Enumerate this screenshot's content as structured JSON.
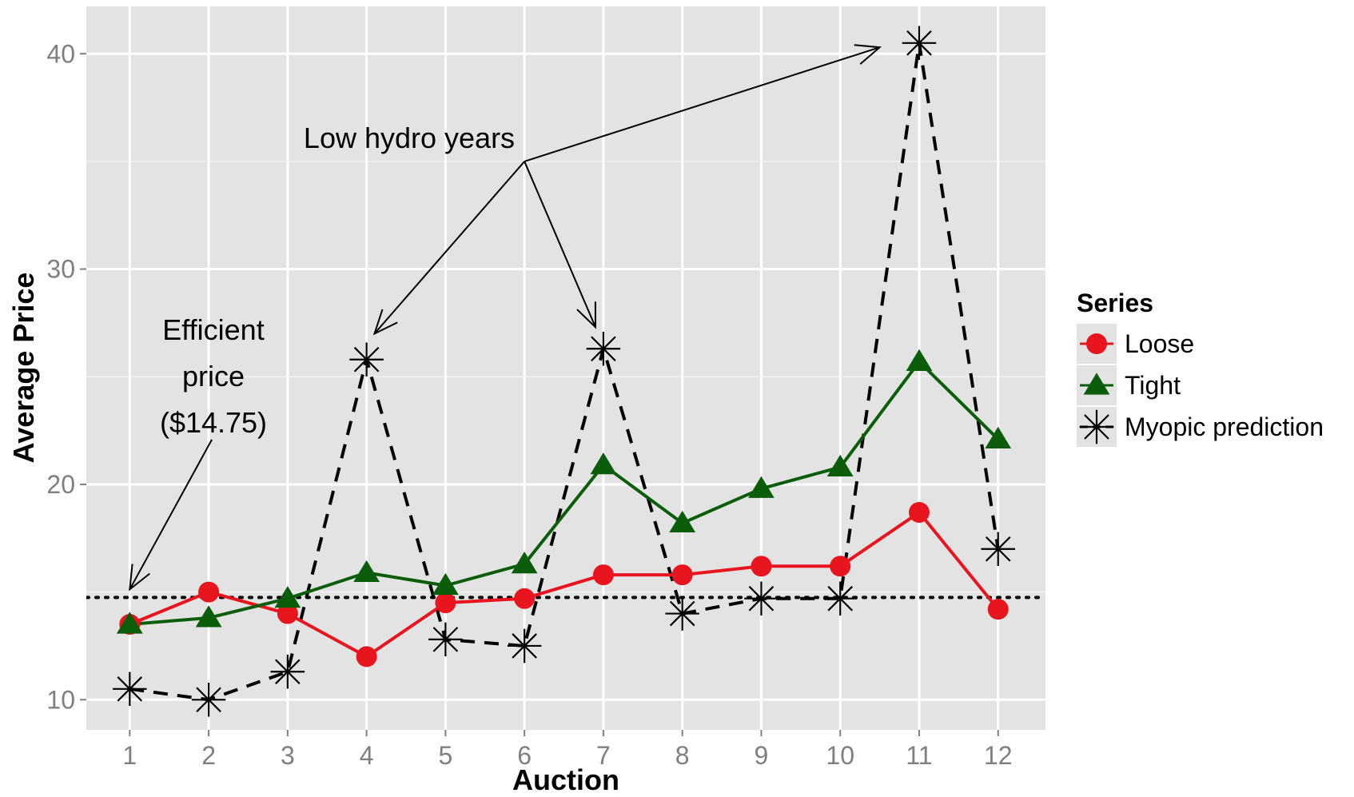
{
  "chart_data": {
    "type": "line",
    "title": "",
    "xlabel": "Auction",
    "ylabel": "Average Price",
    "x": [
      1,
      2,
      3,
      4,
      5,
      6,
      7,
      8,
      9,
      10,
      11,
      12
    ],
    "xticks": [
      "1",
      "2",
      "3",
      "4",
      "5",
      "6",
      "7",
      "8",
      "9",
      "10",
      "11",
      "12"
    ],
    "xlim": [
      0.45,
      12.6
    ],
    "ylim": [
      8.6,
      42.2
    ],
    "yticks": [
      10,
      20,
      30,
      40
    ],
    "ytick_labels": [
      "10",
      "20",
      "30",
      "40"
    ],
    "grid": true,
    "legend_title": "Series",
    "legend_position": "right",
    "background_color": "#e3e3e3",
    "grid_color": "#ffffff",
    "series": [
      {
        "name": "Loose",
        "marker": "circle",
        "line_style": "solid",
        "color": "#e8141e",
        "values": [
          13.5,
          15.0,
          14.0,
          12.0,
          14.5,
          14.7,
          15.8,
          15.8,
          16.2,
          16.2,
          18.7,
          14.2
        ]
      },
      {
        "name": "Tight",
        "marker": "triangle",
        "line_style": "solid",
        "color": "#0b5d0b",
        "values": [
          13.5,
          13.8,
          14.7,
          15.9,
          15.3,
          16.3,
          20.9,
          18.2,
          19.8,
          20.8,
          25.7,
          22.1
        ]
      },
      {
        "name": "Myopic prediction",
        "marker": "asterisk",
        "line_style": "dashed",
        "color": "#000000",
        "values": [
          10.5,
          10.0,
          11.3,
          25.8,
          12.8,
          12.5,
          26.3,
          14.0,
          14.7,
          14.7,
          40.5,
          17.0
        ]
      }
    ],
    "reference_line": {
      "y": 14.75,
      "line_style": "dotted",
      "color": "#000000"
    },
    "annotations": [
      {
        "text_lines": [
          "Efficient",
          "price",
          "($14.75)"
        ],
        "arrows_to": [
          {
            "x": 1,
            "y": 14.9
          }
        ]
      },
      {
        "text_lines": [
          "Low hydro years"
        ],
        "arrow_origin": {
          "x": 6.0,
          "y": 35.0
        },
        "arrows_to": [
          {
            "x": 4.1,
            "y": 27.0
          },
          {
            "x": 6.9,
            "y": 27.3
          },
          {
            "x": 10.5,
            "y": 40.3
          }
        ]
      }
    ]
  }
}
